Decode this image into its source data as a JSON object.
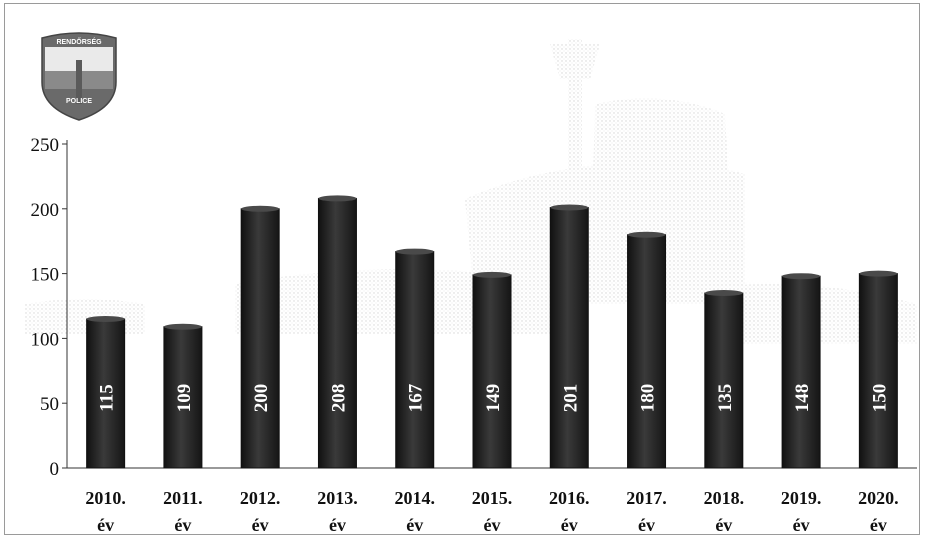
{
  "badge": {
    "top_text": "RENDŐRSÉG",
    "bottom_text": "POLICE"
  },
  "chart_data": {
    "type": "bar",
    "categories": [
      "2010. év",
      "2011. év",
      "2012. év",
      "2013. év",
      "2014. év",
      "2015. év",
      "2016. év",
      "2017. év",
      "2018. év",
      "2019. év",
      "2020. év"
    ],
    "category_lines": [
      [
        "2010.",
        "év"
      ],
      [
        "2011.",
        "év"
      ],
      [
        "2012.",
        "év"
      ],
      [
        "2013.",
        "év"
      ],
      [
        "2014.",
        "év"
      ],
      [
        "2015.",
        "év"
      ],
      [
        "2016.",
        "év"
      ],
      [
        "2017.",
        "év"
      ],
      [
        "2018.",
        "év"
      ],
      [
        "2019.",
        "év"
      ],
      [
        "2020.",
        "év"
      ]
    ],
    "values": [
      115,
      109,
      200,
      208,
      167,
      149,
      201,
      180,
      135,
      148,
      150
    ],
    "yticks": [
      0,
      50,
      100,
      150,
      200,
      250
    ],
    "ylim": [
      0,
      250
    ],
    "grid": false,
    "legend": "none",
    "bar_color": "#2a2a2a",
    "value_label_color": "#ffffff"
  }
}
